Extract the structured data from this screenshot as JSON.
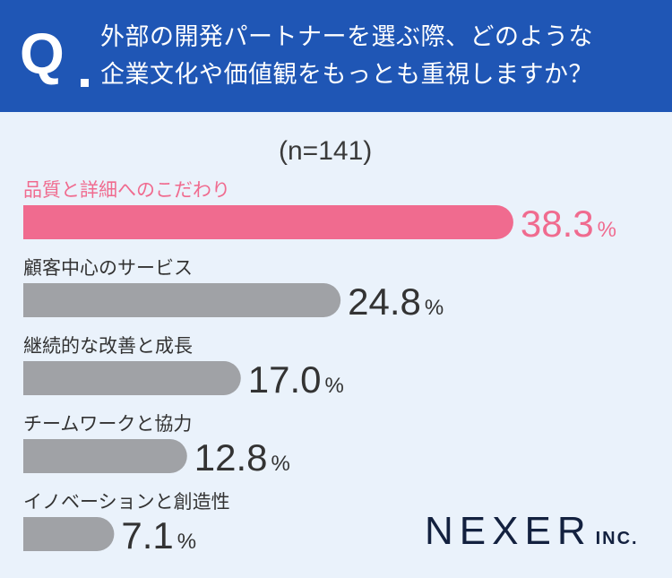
{
  "header": {
    "q_mark": "Q",
    "question_line1": "外部の開発パートナーを選ぶ際、どのような",
    "question_line2": "企業文化や価値観をもっとも重視しますか？"
  },
  "colors": {
    "header_bg": "#1f56b5",
    "highlight": "#f06b8f",
    "bar_gray": "#a0a2a6",
    "background": "#eaf2fb"
  },
  "logo": {
    "main": "NEXER",
    "sub": "INC."
  },
  "chart_data": {
    "type": "bar",
    "orientation": "horizontal",
    "title": "外部の開発パートナーを選ぶ際、どのような企業文化や価値観をもっとも重視しますか？",
    "sample_size_label": "(n=141)",
    "unit": "%",
    "xlim": [
      0,
      40
    ],
    "categories": [
      "品質と詳細へのこだわり",
      "顧客中心のサービス",
      "継続的な改善と成長",
      "チームワークと協力",
      "イノベーションと創造性"
    ],
    "values": [
      38.3,
      24.8,
      17.0,
      12.8,
      7.1
    ],
    "value_labels": [
      "38.3",
      "24.8",
      "17.0",
      "12.8",
      "7.1"
    ],
    "highlight_index": 0
  }
}
